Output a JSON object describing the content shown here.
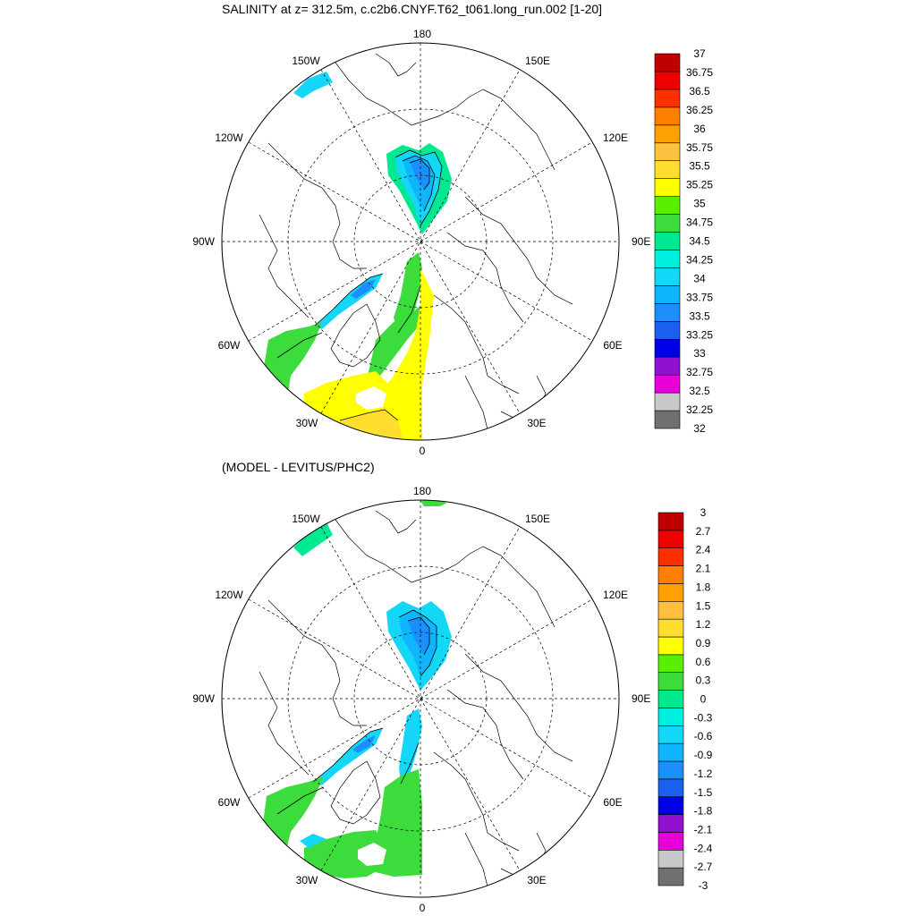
{
  "figure": {
    "top_title": "SALINITY at z= 312.5m, c.c2b6.CNYF.T62_t061.long_run.002 [1-20]",
    "bottom_title": "(MODEL - LEVITUS/PHC2)"
  },
  "map_labels": {
    "lon_top": "180",
    "lon_bottom": "0",
    "lon_left": "90W",
    "lon_right": "90E",
    "lon_150w": "150W",
    "lon_120w": "120W",
    "lon_60w": "60W",
    "lon_30w": "30W",
    "lon_150e": "150E",
    "lon_120e": "120E",
    "lon_60e": "60E",
    "lon_30e": "30E"
  },
  "chart_data": [
    {
      "type": "polar-stereographic-contour-map",
      "title": "SALINITY at z= 312.5m, c.c2b6.CNYF.T62_t061.long_run.002 [1-20]",
      "projection": "north-polar",
      "longitude_labels": [
        "180",
        "150E",
        "120E",
        "90E",
        "60E",
        "30E",
        "0",
        "30W",
        "60W",
        "90W",
        "120W",
        "150W"
      ],
      "colorbar": {
        "levels": [
          "32",
          "32.25",
          "32.5",
          "32.75",
          "33",
          "33.25",
          "33.5",
          "33.75",
          "34",
          "34.25",
          "34.5",
          "34.75",
          "35",
          "35.25",
          "35.5",
          "35.75",
          "36",
          "36.25",
          "36.5",
          "36.75",
          "37"
        ],
        "colors": [
          "#707070",
          "#c8c8c8",
          "#e800d8",
          "#9010d0",
          "#0000e6",
          "#1a5ff0",
          "#1c8fff",
          "#10b5ff",
          "#14d7f8",
          "#00f0e0",
          "#00e890",
          "#3cdc3c",
          "#58f000",
          "#ffff00",
          "#ffde30",
          "#ffc040",
          "#ffa000",
          "#ff8000",
          "#ff3000",
          "#ee0000",
          "#c00000"
        ]
      }
    },
    {
      "type": "polar-stereographic-contour-map",
      "title": "(MODEL - LEVITUS/PHC2)",
      "projection": "north-polar",
      "longitude_labels": [
        "180",
        "150E",
        "120E",
        "90E",
        "60E",
        "30E",
        "0",
        "30W",
        "60W",
        "90W",
        "120W",
        "150W"
      ],
      "colorbar": {
        "levels": [
          "-3",
          "-2.7",
          "-2.4",
          "-2.1",
          "-1.8",
          "-1.5",
          "-1.2",
          "-0.9",
          "-0.6",
          "-0.3",
          "0",
          "0.3",
          "0.6",
          "0.9",
          "1.2",
          "1.5",
          "1.8",
          "2.1",
          "2.4",
          "2.7",
          "3"
        ],
        "colors": [
          "#707070",
          "#c8c8c8",
          "#e800d8",
          "#9010d0",
          "#0000e6",
          "#1a5ff0",
          "#1c8fff",
          "#10b5ff",
          "#14d7f8",
          "#00f0e0",
          "#00e890",
          "#3cdc3c",
          "#58f000",
          "#ffff00",
          "#ffde30",
          "#ffc040",
          "#ffa000",
          "#ff8000",
          "#ff3000",
          "#ee0000",
          "#c00000"
        ]
      }
    }
  ]
}
